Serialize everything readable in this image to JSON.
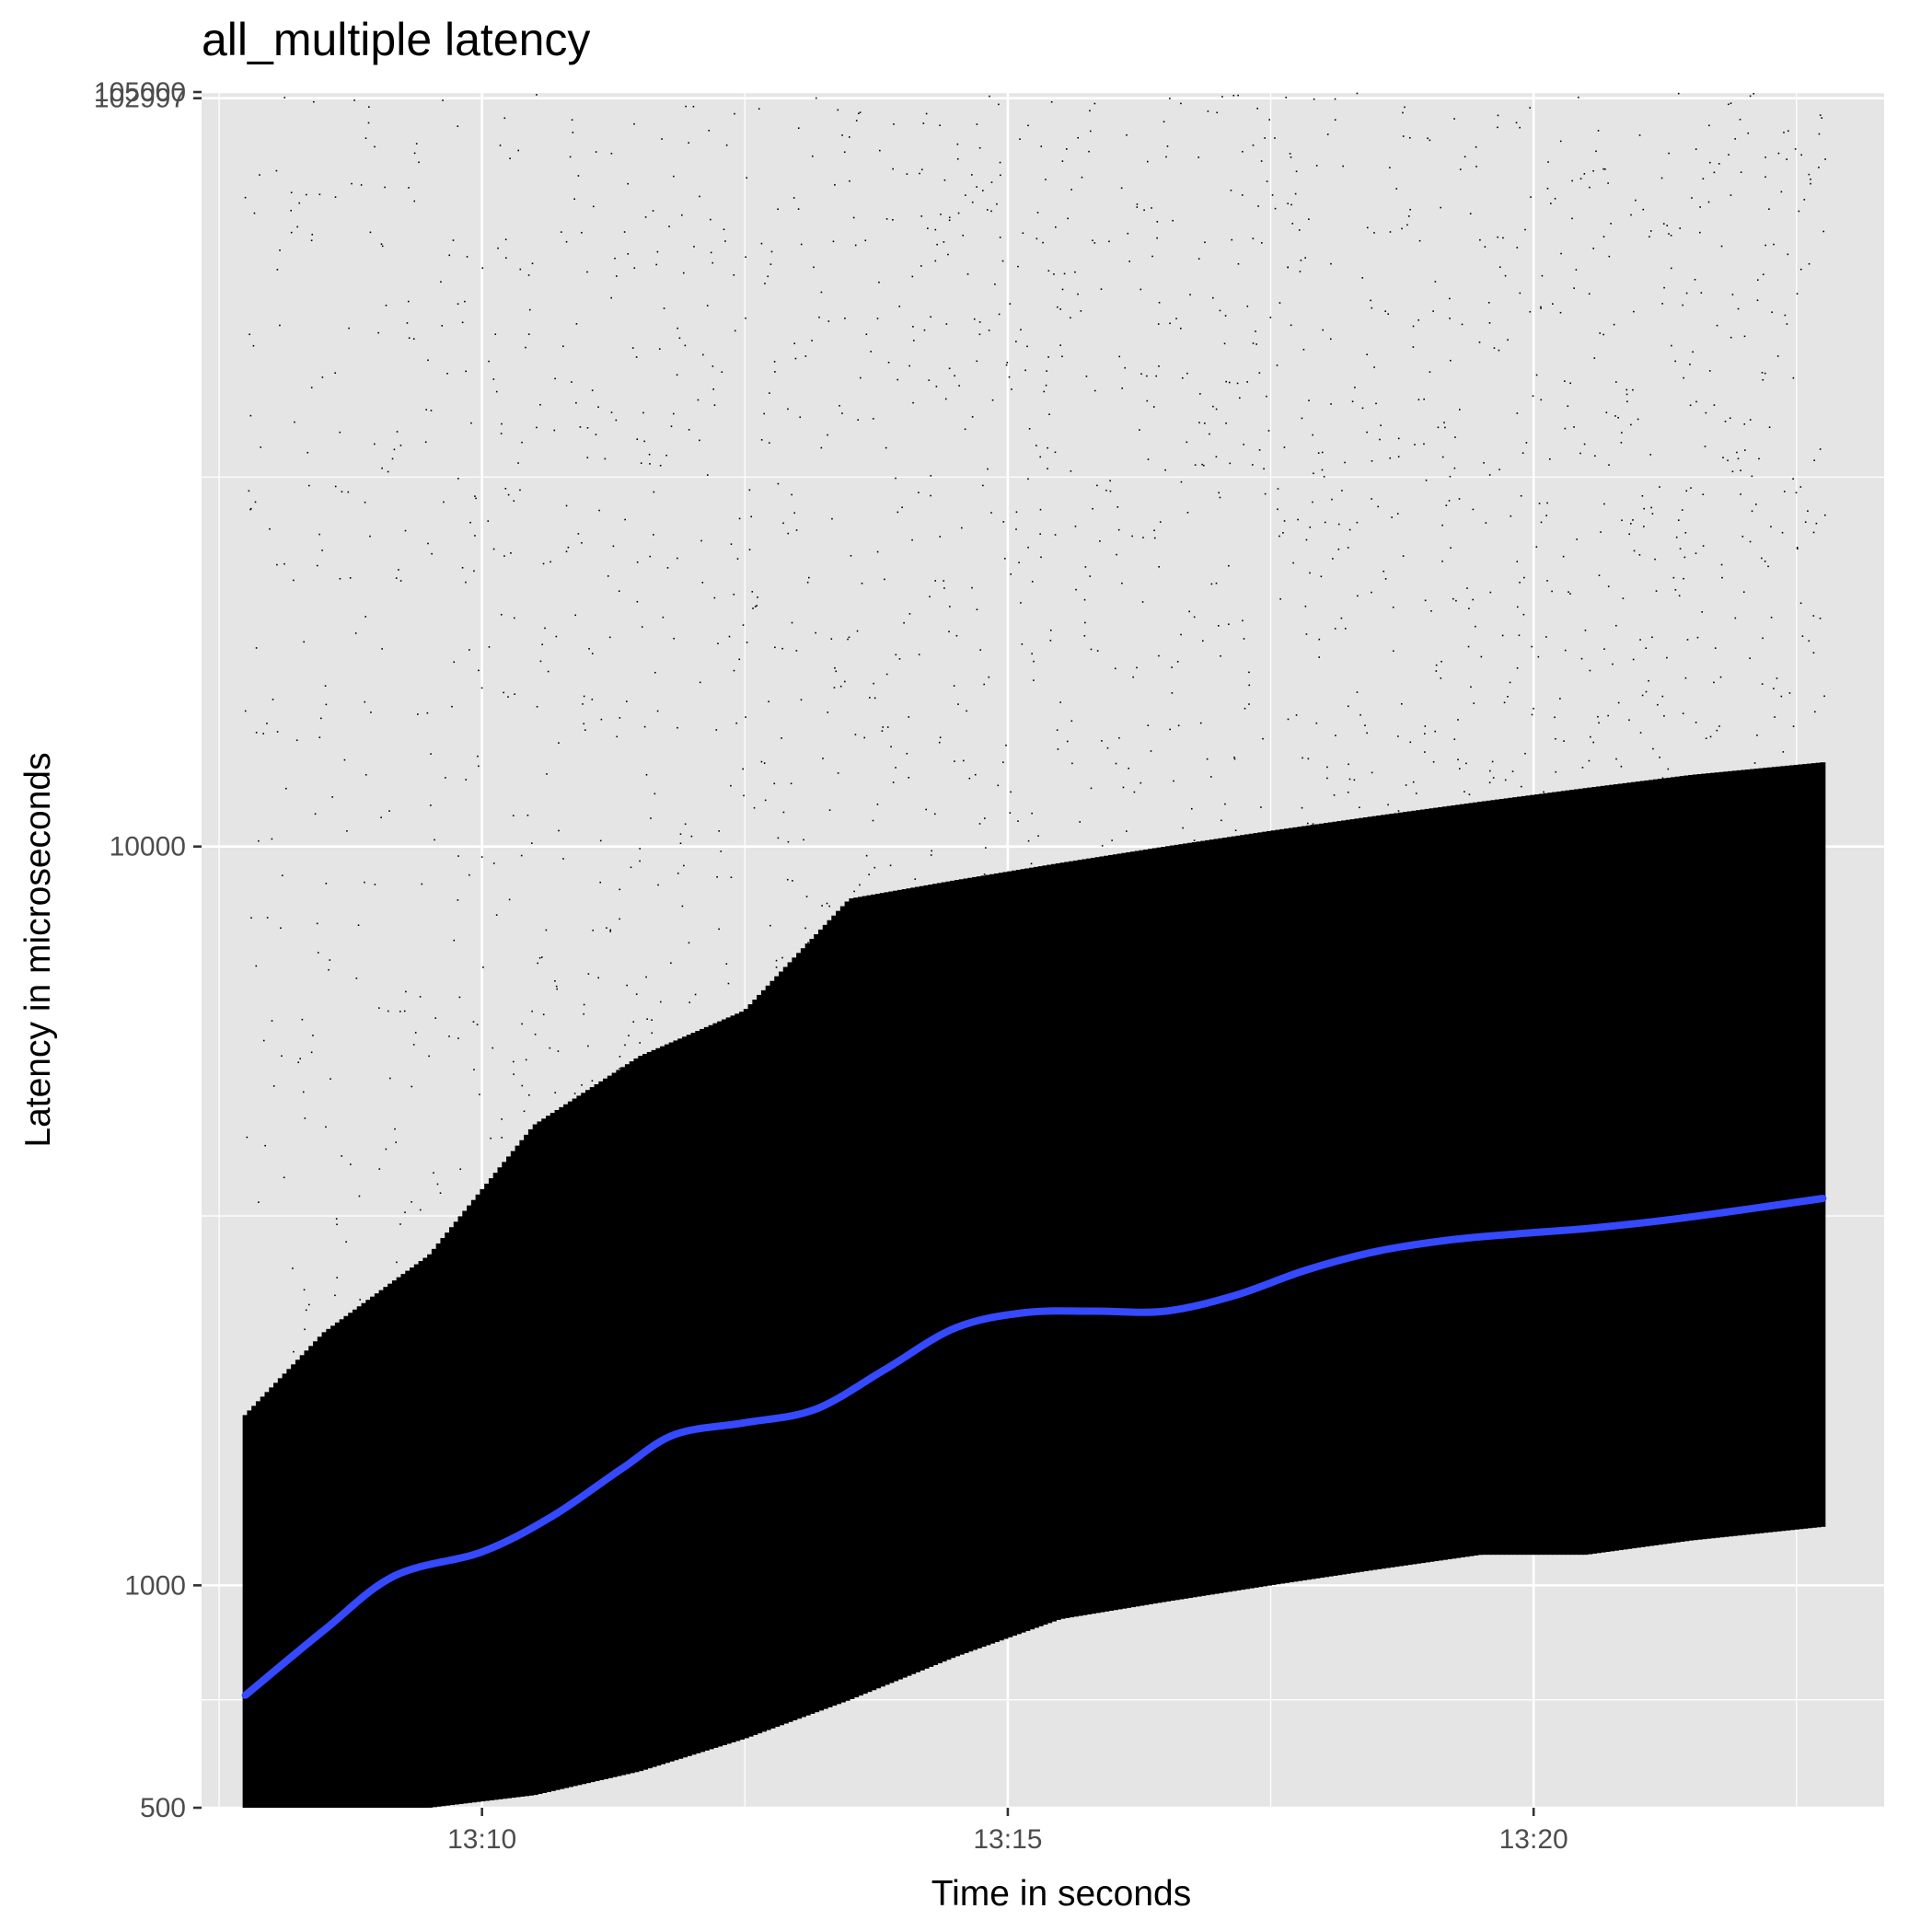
{
  "chart_data": {
    "type": "scatter",
    "title": "all_multiple latency",
    "xlabel": "Time in seconds",
    "ylabel": "Latency in microseconds",
    "y_scale": "log10",
    "ylim": [
      500,
      105000
    ],
    "xlim": [
      "13:07:20",
      "13:23:20"
    ],
    "x_ticks": [
      {
        "label": "13:10",
        "value": "13:10:00"
      },
      {
        "label": "13:15",
        "value": "13:15:00"
      },
      {
        "label": "13:20",
        "value": "13:20:00"
      }
    ],
    "y_ticks": [
      {
        "label": "500",
        "value": 500
      },
      {
        "label": "1000",
        "value": 1000
      },
      {
        "label": "10000",
        "value": 10000
      },
      {
        "label": "102997",
        "value": 102997
      },
      {
        "label": "105000",
        "value": 105000
      }
    ],
    "y_minor_gridlines": [
      700,
      3162,
      31623
    ],
    "grid": true,
    "legend": "none",
    "background_color": "#e5e5e5",
    "grid_color": "#ffffff",
    "point_color": "#000000",
    "smooth_color": "#3549ff",
    "series": [
      {
        "kind": "points",
        "x_range": [
          "13:07:45",
          "13:22:45"
        ],
        "density_bands": [
          {
            "x": "13:07:45",
            "low": 500,
            "high": 1700
          },
          {
            "x": "13:08:30",
            "low": 500,
            "high": 2200
          },
          {
            "x": "13:09:30",
            "low": 500,
            "high": 2800
          },
          {
            "x": "13:10:30",
            "low": 520,
            "high": 4200
          },
          {
            "x": "13:11:30",
            "low": 560,
            "high": 5200
          },
          {
            "x": "13:12:30",
            "low": 620,
            "high": 6000
          },
          {
            "x": "13:13:30",
            "low": 700,
            "high": 8500
          },
          {
            "x": "13:14:30",
            "low": 800,
            "high": 9000
          },
          {
            "x": "13:15:30",
            "low": 900,
            "high": 9500
          },
          {
            "x": "13:16:30",
            "low": 950,
            "high": 10000
          },
          {
            "x": "13:17:30",
            "low": 1000,
            "high": 10500
          },
          {
            "x": "13:18:30",
            "low": 1050,
            "high": 11000
          },
          {
            "x": "13:19:30",
            "low": 1100,
            "high": 11500
          },
          {
            "x": "13:20:30",
            "low": 1100,
            "high": 12000
          },
          {
            "x": "13:21:30",
            "low": 1150,
            "high": 12500
          },
          {
            "x": "13:22:45",
            "low": 1200,
            "high": 13000
          }
        ]
      },
      {
        "kind": "smooth",
        "x": [
          "13:07:45",
          "13:08:30",
          "13:09:10",
          "13:10:00",
          "13:10:40",
          "13:11:20",
          "13:11:50",
          "13:12:30",
          "13:13:10",
          "13:13:50",
          "13:14:30",
          "13:15:10",
          "13:15:50",
          "13:16:30",
          "13:17:10",
          "13:17:50",
          "13:18:30",
          "13:19:10",
          "13:19:50",
          "13:20:30",
          "13:21:10",
          "13:21:50",
          "13:22:45"
        ],
        "y": [
          710,
          870,
          1030,
          1110,
          1240,
          1440,
          1600,
          1660,
          1730,
          1960,
          2230,
          2340,
          2350,
          2350,
          2470,
          2670,
          2830,
          2930,
          2990,
          3040,
          3110,
          3200,
          3340
        ]
      }
    ]
  }
}
